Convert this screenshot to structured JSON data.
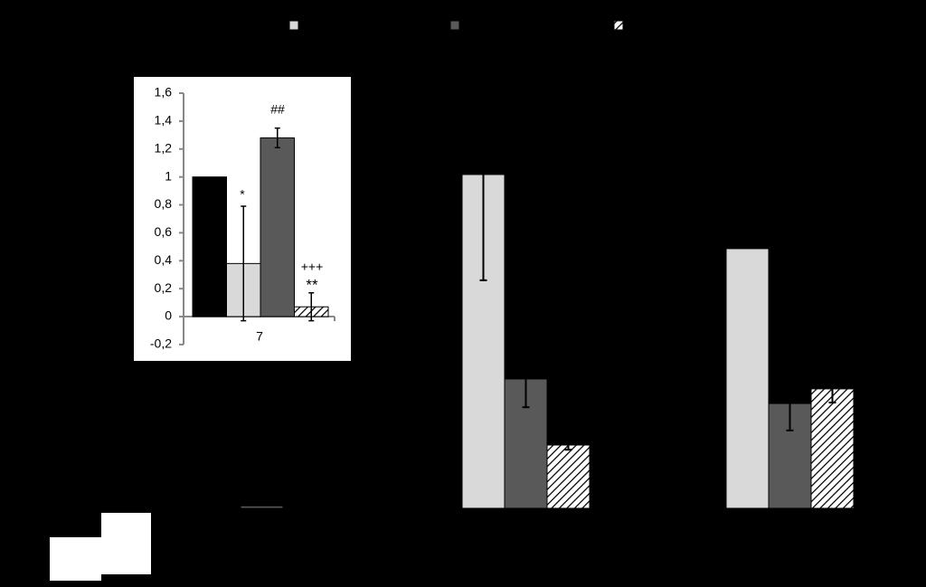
{
  "chart_data": [
    {
      "type": "bar",
      "categories": [
        null,
        null,
        null
      ],
      "ylim": [
        0,
        10
      ],
      "series": [
        {
          "color": "#d9d9d9",
          "values": [
            0,
            7.07,
            5.5
          ],
          "errors": [
            0,
            2.24,
            0
          ]
        },
        {
          "color": "#595959",
          "values": [
            0.05,
            2.74,
            2.22
          ],
          "errors": [
            0,
            0.6,
            0.57
          ]
        },
        {
          "color": "#ffffff",
          "hatch": true,
          "values": [
            0,
            1.34,
            2.53
          ],
          "errors": [
            0,
            0.1,
            0.29
          ]
        }
      ]
    },
    {
      "type": "bar",
      "categories": [
        "7"
      ],
      "ylim": [
        -0.2,
        1.6
      ],
      "yticks": [
        {
          "value": -0.2,
          "label": "-0,2"
        },
        0,
        {
          "value": 0.2,
          "label": "0,2"
        },
        {
          "value": 0.4,
          "label": "0,4"
        },
        {
          "value": 0.6,
          "label": "0,6"
        },
        {
          "value": 0.8,
          "label": "0,8"
        },
        1,
        {
          "value": 1.2,
          "label": "1,2"
        },
        {
          "value": 1.4,
          "label": "1,4"
        },
        {
          "value": 1.6,
          "label": "1,6"
        }
      ],
      "series": [
        {
          "color": "#000000",
          "values": [
            1.0
          ]
        },
        {
          "color": "#d9d9d9",
          "values": [
            0.38
          ],
          "errors": [
            0.41
          ]
        },
        {
          "color": "#595959",
          "values": [
            1.28
          ],
          "errors": [
            0.07
          ]
        },
        {
          "color": "#ffffff",
          "hatch": true,
          "values": [
            0.07
          ],
          "errors": [
            0.1
          ]
        }
      ],
      "annotations": [
        "*",
        "##",
        "+++",
        "**"
      ]
    }
  ]
}
